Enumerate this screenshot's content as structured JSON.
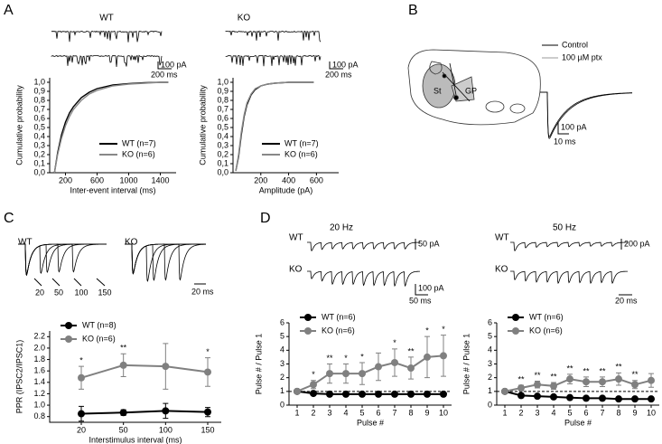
{
  "panels": {
    "A": {
      "label": "A",
      "title_wt": "WT",
      "title_ko": "KO",
      "scale_wt_pa": "100 pA",
      "scale_wt_ms": "200 ms",
      "scale_ko_pa": "100 pA",
      "scale_ko_ms": "200 ms"
    },
    "B": {
      "label": "B",
      "legend_control": "Control",
      "legend_ptx": "100 µM ptx",
      "region_st": "St",
      "region_gp": "GP",
      "scale_pa": "100 pA",
      "scale_ms": "10 ms"
    },
    "C": {
      "label": "C",
      "title_wt": "WT",
      "title_ko": "KO",
      "intervals": [
        "20",
        "50",
        "100",
        "150"
      ],
      "scale_ms": "20 ms"
    },
    "D": {
      "label": "D",
      "freq_20": "20 Hz",
      "freq_50": "50 Hz",
      "row_wt_20": "WT",
      "row_ko_20": "KO",
      "row_wt_50": "WT",
      "row_ko_50": "KO",
      "scale_20_wt": "50 pA",
      "scale_20_ko": "100 pA",
      "scale_20_ms": "50 ms",
      "scale_50_pa": "200 pA",
      "scale_50_ms": "20 ms"
    }
  },
  "chart_data": [
    {
      "type": "line",
      "x_label": "Inter-event interval (ms)",
      "y_label": "Cumulative probability",
      "x": [
        60,
        100,
        150,
        200,
        250,
        300,
        400,
        500,
        600,
        800,
        1000,
        1200,
        1400,
        1500
      ],
      "series": [
        {
          "name": "WT (n=7)",
          "color": "#000000",
          "values": [
            0,
            0.22,
            0.42,
            0.56,
            0.66,
            0.73,
            0.83,
            0.89,
            0.93,
            0.97,
            0.985,
            0.995,
            1,
            1
          ]
        },
        {
          "name": "KO (n=6)",
          "color": "#888888",
          "values": [
            0,
            0.2,
            0.38,
            0.52,
            0.62,
            0.7,
            0.8,
            0.87,
            0.91,
            0.96,
            0.98,
            0.99,
            1,
            1
          ]
        }
      ],
      "xlim": [
        0,
        1600
      ],
      "xticks": [
        200,
        600,
        1000,
        1400
      ],
      "ylim": [
        0,
        1.05
      ],
      "yticks": [
        {
          "value": 0,
          "label": "0,0"
        },
        {
          "value": 0.1,
          "label": "0,1"
        },
        {
          "value": 0.2,
          "label": "0,2"
        },
        {
          "value": 0.3,
          "label": "0,3"
        },
        {
          "value": 0.4,
          "label": "0,4"
        },
        {
          "value": 0.5,
          "label": "0,5"
        },
        {
          "value": 0.6,
          "label": "0,6"
        },
        {
          "value": 0.7,
          "label": "0,7"
        },
        {
          "value": 0.8,
          "label": "0,8"
        },
        {
          "value": 0.9,
          "label": "0,9"
        },
        {
          "value": 1,
          "label": "1,0"
        }
      ],
      "legend": "lower right"
    },
    {
      "type": "line",
      "x_label": "Amplitude (pA)",
      "y_label": "Cumulative probability",
      "x": [
        20,
        40,
        60,
        80,
        100,
        130,
        160,
        200,
        250,
        300,
        400,
        580
      ],
      "series": [
        {
          "name": "WT (n=7)",
          "color": "#000000",
          "values": [
            0.02,
            0.18,
            0.42,
            0.62,
            0.75,
            0.86,
            0.92,
            0.96,
            0.98,
            0.99,
            1,
            1
          ]
        },
        {
          "name": "KO (n=6)",
          "color": "#888888",
          "values": [
            0.02,
            0.2,
            0.45,
            0.64,
            0.77,
            0.87,
            0.93,
            0.96,
            0.98,
            0.99,
            1,
            1
          ]
        }
      ],
      "xlim": [
        0,
        760
      ],
      "xticks": [
        200,
        400,
        600
      ],
      "ylim": [
        0,
        1.05
      ],
      "yticks": [
        {
          "value": 0,
          "label": "0,0"
        },
        {
          "value": 0.1,
          "label": "0,1"
        },
        {
          "value": 0.2,
          "label": "0,2"
        },
        {
          "value": 0.3,
          "label": "0,3"
        },
        {
          "value": 0.4,
          "label": "0,4"
        },
        {
          "value": 0.5,
          "label": "0,5"
        },
        {
          "value": 0.6,
          "label": "0,6"
        },
        {
          "value": 0.7,
          "label": "0,7"
        },
        {
          "value": 0.8,
          "label": "0,8"
        },
        {
          "value": 0.9,
          "label": "0,9"
        },
        {
          "value": 1,
          "label": "1,0"
        }
      ],
      "legend": "lower right"
    },
    {
      "type": "line",
      "x_label": "Interstimulus interval (ms)",
      "y_label": "PPR (IPSC2/IPSC1)",
      "categories": [
        20,
        50,
        100,
        150
      ],
      "series": [
        {
          "name": "WT (n=8)",
          "color": "#000000",
          "values": [
            0.85,
            0.87,
            0.9,
            0.88
          ],
          "errors": [
            0.13,
            0.05,
            0.13,
            0.08
          ]
        },
        {
          "name": "KO (n=6)",
          "color": "#808080",
          "values": [
            1.48,
            1.7,
            1.68,
            1.58
          ],
          "errors": [
            0.2,
            0.2,
            0.4,
            0.25
          ],
          "annotations": [
            "*",
            "**",
            null,
            "*"
          ]
        }
      ],
      "ylim": [
        0.7,
        2.3
      ],
      "yticks": [
        0.8,
        {
          "value": 1,
          "label": "1.0"
        },
        1.2,
        1.4,
        1.6,
        1.8,
        {
          "value": 2,
          "label": "2.0"
        },
        2.2
      ],
      "legend": "upper left"
    },
    {
      "type": "line",
      "x_label": "Pulse #",
      "y_label": "Pulse # / Pulse 1",
      "x": [
        1,
        2,
        3,
        4,
        5,
        6,
        7,
        8,
        9,
        10
      ],
      "series": [
        {
          "name": "WT (n=6)",
          "color": "#000000",
          "values": [
            1,
            0.85,
            0.8,
            0.8,
            0.8,
            0.8,
            0.8,
            0.8,
            0.8,
            0.8
          ]
        },
        {
          "name": "KO (n=6)",
          "color": "#808080",
          "values": [
            1,
            1.5,
            2.3,
            2.3,
            2.3,
            2.8,
            3.1,
            2.7,
            3.5,
            3.6
          ],
          "errors": [
            0,
            0.3,
            0.7,
            0.7,
            0.8,
            1,
            1,
            0.8,
            1.5,
            1.5
          ],
          "annotations": [
            null,
            "*",
            "**",
            "*",
            "*",
            null,
            "*",
            "**",
            "*",
            "*"
          ]
        }
      ],
      "xlim": [
        0.5,
        10.5
      ],
      "xticks": [
        1,
        2,
        3,
        4,
        5,
        6,
        7,
        8,
        9,
        10
      ],
      "ylim": [
        0,
        6
      ],
      "yticks": [
        0,
        1,
        2,
        3,
        4,
        5,
        6
      ],
      "hline": 1,
      "legend": "upper left"
    },
    {
      "type": "line",
      "x_label": "Pulse #",
      "y_label": "Pulse # / Pulse 1",
      "x": [
        1,
        2,
        3,
        4,
        5,
        6,
        7,
        8,
        9,
        10
      ],
      "series": [
        {
          "name": "WT (n=6)",
          "color": "#000000",
          "values": [
            1,
            0.7,
            0.65,
            0.6,
            0.55,
            0.5,
            0.5,
            0.45,
            0.45,
            0.45
          ]
        },
        {
          "name": "KO (n=6)",
          "color": "#808080",
          "values": [
            1,
            1.25,
            1.5,
            1.4,
            1.9,
            1.7,
            1.7,
            1.9,
            1.5,
            1.8
          ],
          "errors": [
            0,
            0.2,
            0.25,
            0.25,
            0.35,
            0.35,
            0.35,
            0.45,
            0.3,
            0.5
          ],
          "annotations": [
            null,
            "**",
            "**",
            "**",
            "**",
            "**",
            "**",
            "**",
            "**",
            null
          ]
        }
      ],
      "xlim": [
        0.5,
        10.5
      ],
      "xticks": [
        1,
        2,
        3,
        4,
        5,
        6,
        7,
        8,
        9,
        10
      ],
      "ylim": [
        0,
        6
      ],
      "yticks": [
        0,
        1,
        2,
        3,
        4,
        5,
        6
      ],
      "hline": 1,
      "legend": "upper left"
    }
  ]
}
